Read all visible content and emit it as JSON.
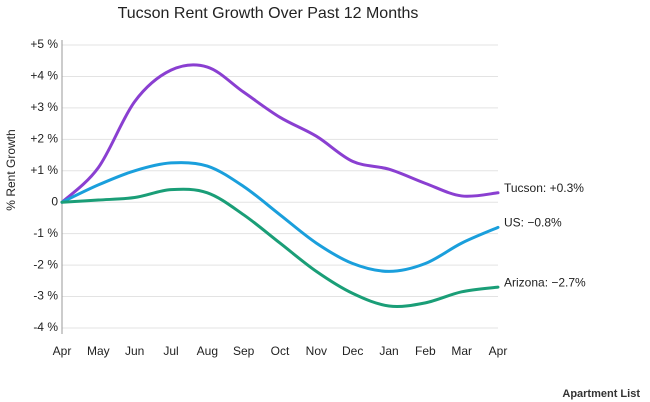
{
  "chart_data": {
    "type": "line",
    "title": "Tucson Rent Growth Over Past 12 Months",
    "y_label": "% Rent Growth",
    "footer": "Apartment List",
    "categories": [
      "Apr",
      "May",
      "Jun",
      "Jul",
      "Aug",
      "Sep",
      "Oct",
      "Nov",
      "Dec",
      "Jan",
      "Feb",
      "Mar",
      "Apr"
    ],
    "ylim": [
      -4,
      5
    ],
    "yticks": [
      {
        "value": 5,
        "label": "+5 %"
      },
      {
        "value": 4,
        "label": "+4 %"
      },
      {
        "value": 3,
        "label": "+3 %"
      },
      {
        "value": 2,
        "label": "+2 %"
      },
      {
        "value": 1,
        "label": "+1 %"
      },
      0,
      {
        "value": -1,
        "label": "-1 %"
      },
      {
        "value": -2,
        "label": "-2 %"
      },
      {
        "value": -3,
        "label": "-3 %"
      },
      {
        "value": -4,
        "label": "-4 %"
      }
    ],
    "grid": true,
    "series": [
      {
        "name": "Tucson",
        "color": "#8a3fd1",
        "label": "Tucson: +0.3%",
        "values": [
          0,
          1.1,
          3.2,
          4.2,
          4.3,
          3.5,
          2.7,
          2.1,
          1.3,
          1.05,
          0.6,
          0.2,
          0.3
        ]
      },
      {
        "name": "US",
        "color": "#1a9fdc",
        "label": "US: −0.8%",
        "values": [
          0,
          0.55,
          1.0,
          1.25,
          1.15,
          0.5,
          -0.4,
          -1.3,
          -1.95,
          -2.2,
          -1.95,
          -1.3,
          -0.8
        ]
      },
      {
        "name": "Arizona",
        "color": "#1a9e77",
        "label": "Arizona: −2.7%",
        "values": [
          0,
          0.07,
          0.15,
          0.4,
          0.3,
          -0.4,
          -1.3,
          -2.2,
          -2.9,
          -3.3,
          -3.2,
          -2.85,
          -2.7
        ]
      }
    ]
  }
}
